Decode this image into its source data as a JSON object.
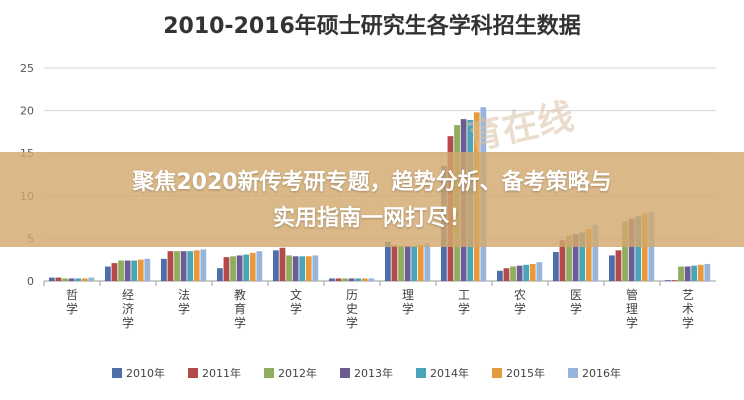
{
  "chart_data": {
    "type": "bar",
    "title": "2010-2016年硕士研究生各学科招生数据",
    "xlabel": "",
    "ylabel": "",
    "ylim": [
      0,
      25
    ],
    "yticks": [
      "0",
      "5",
      "10",
      "15",
      "20",
      "25"
    ],
    "grid": true,
    "legend_position": "bottom",
    "categories": [
      "哲学",
      "经济学",
      "法学",
      "教育学",
      "文学",
      "历史学",
      "理学",
      "工学",
      "农学",
      "医学",
      "管理学",
      "艺术学"
    ],
    "series": [
      {
        "name": "2010年",
        "color": "#4f6fa8",
        "values": [
          0.4,
          1.7,
          2.6,
          1.5,
          3.6,
          0.3,
          4.6,
          13.5,
          1.2,
          3.4,
          3.0,
          0.1
        ]
      },
      {
        "name": "2011年",
        "color": "#b24a4a",
        "values": [
          0.4,
          2.1,
          3.5,
          2.8,
          3.9,
          0.3,
          4.2,
          17.0,
          1.5,
          4.8,
          3.6,
          0.1
        ]
      },
      {
        "name": "2012年",
        "color": "#8fae5c",
        "values": [
          0.3,
          2.4,
          3.5,
          2.9,
          3.0,
          0.3,
          4.1,
          18.3,
          1.7,
          5.3,
          7.0,
          1.7
        ]
      },
      {
        "name": "2013年",
        "color": "#6c5a92",
        "values": [
          0.3,
          2.4,
          3.5,
          3.0,
          2.9,
          0.3,
          4.1,
          19.0,
          1.8,
          5.5,
          7.3,
          1.7
        ]
      },
      {
        "name": "2014年",
        "color": "#4aa3b8",
        "values": [
          0.3,
          2.4,
          3.5,
          3.1,
          2.9,
          0.3,
          4.1,
          18.9,
          1.9,
          5.7,
          7.6,
          1.8
        ]
      },
      {
        "name": "2015年",
        "color": "#e59a3d",
        "values": [
          0.3,
          2.5,
          3.6,
          3.3,
          2.9,
          0.3,
          4.2,
          19.8,
          2.0,
          6.1,
          7.9,
          1.9
        ]
      },
      {
        "name": "2016年",
        "color": "#97b4dd",
        "values": [
          0.4,
          2.6,
          3.7,
          3.5,
          3.0,
          0.3,
          4.4,
          20.4,
          2.2,
          6.6,
          8.1,
          2.0
        ]
      }
    ],
    "watermark": "育在线"
  },
  "overlay": {
    "line1": "聚焦2020新传考研专题，趋势分析、备考策略与",
    "line2": "实用指南一网打尽！"
  }
}
